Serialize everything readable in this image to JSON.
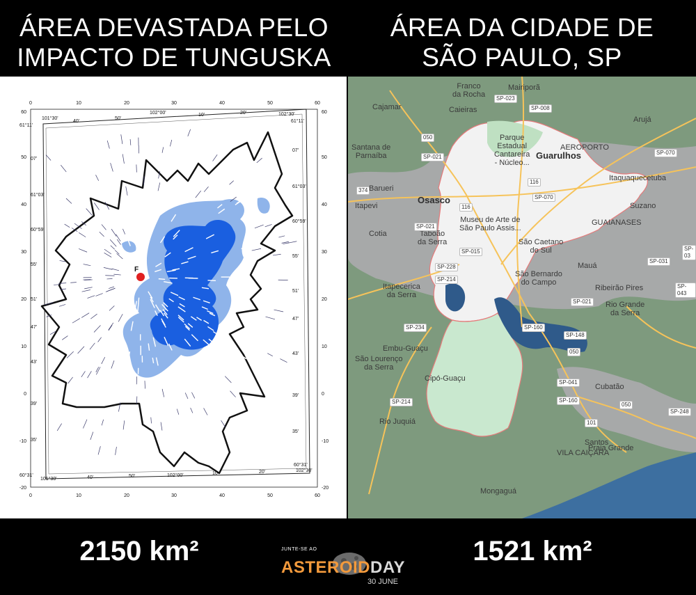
{
  "left_title": [
    "ÁREA DEVASTADA PELO",
    "IMPACTO DE TUNGUSKA"
  ],
  "right_title": [
    "ÁREA DA CIDADE DE",
    "SÃO PAULO, SP"
  ],
  "left_area": "2150 km²",
  "right_area": "1521 km²",
  "logo": {
    "small": "JUNTE-SE AO",
    "asteroid": "ASTEROID",
    "day": "DAY",
    "date": "30 JUNE"
  },
  "tunguska_map": {
    "axis_ticks": [
      "0",
      "10",
      "20",
      "30",
      "40",
      "50",
      "60"
    ],
    "y_ticks": [
      "60",
      "50",
      "40",
      "30",
      "20",
      "10",
      "0",
      "-10",
      "-20"
    ],
    "epicenter_label": "F",
    "corner_labels": [
      "61°11'",
      "101°30'",
      "102°00'",
      "102°30'",
      "61°11'",
      "60°31'",
      "101°30'",
      "102°00'",
      "102°30'",
      "60°31'"
    ],
    "lon_ticks": [
      "40'",
      "50'",
      "10'",
      "20'",
      "40'",
      "50'",
      "10'",
      "20'"
    ],
    "lat_ticks_left": [
      "07'",
      "61°03'",
      "60°59'",
      "55'",
      "51'",
      "47'",
      "43'",
      "39'",
      "35'"
    ],
    "lat_ticks_right": [
      "07'",
      "61°03'",
      "60°59'",
      "55'",
      "51'",
      "47'",
      "43'",
      "39'",
      "35'"
    ],
    "colors": {
      "light_blue": "#8fb4ea",
      "dark_blue": "#1a5fe0",
      "epicenter": "#e02020",
      "outline": "#111111"
    }
  },
  "sp_map": {
    "places": [
      {
        "name": "Franco\nda Rocha",
        "big": false
      },
      {
        "name": "Mairiporã",
        "big": false
      },
      {
        "name": "Cajamar",
        "big": false
      },
      {
        "name": "Caieiras",
        "big": false
      },
      {
        "name": "Arujá",
        "big": false
      },
      {
        "name": "Santana de\nParnaíba",
        "big": false
      },
      {
        "name": "Parque\nEstadual\nCantareira\n- Núcleo...",
        "big": false
      },
      {
        "name": "Guarulhos",
        "big": true
      },
      {
        "name": "AEROPORTO",
        "big": false
      },
      {
        "name": "Barueri",
        "big": false
      },
      {
        "name": "Itaquaquecetuba",
        "big": false
      },
      {
        "name": "Osasco",
        "big": true
      },
      {
        "name": "Itapevi",
        "big": false
      },
      {
        "name": "Suzano",
        "big": false
      },
      {
        "name": "Museu de Arte de\nSão Paulo Assis...",
        "big": false
      },
      {
        "name": "GUAIANASES",
        "big": false
      },
      {
        "name": "Cotia",
        "big": false
      },
      {
        "name": "Taboão\nda Serra",
        "big": false
      },
      {
        "name": "São Caetano\ndo Sul",
        "big": false
      },
      {
        "name": "Mauá",
        "big": false
      },
      {
        "name": "São Bernardo\ndo Campo",
        "big": false
      },
      {
        "name": "Ribeirão Pires",
        "big": false
      },
      {
        "name": "Itapecerica\nda Serra",
        "big": false
      },
      {
        "name": "Rio Grande\nda Serra",
        "big": false
      },
      {
        "name": "Embu-Guaçu",
        "big": false
      },
      {
        "name": "São Lourenço\nda Serra",
        "big": false
      },
      {
        "name": "Cipó-Guaçu",
        "big": false
      },
      {
        "name": "Cubatão",
        "big": false
      },
      {
        "name": "Rio Juquiá",
        "big": false
      },
      {
        "name": "Santos",
        "big": false
      },
      {
        "name": "Praia Grande",
        "big": false
      },
      {
        "name": "VILA CAIÇARA",
        "big": false
      },
      {
        "name": "Mongaguá",
        "big": false
      }
    ],
    "shields": [
      "SP-023",
      "SP-008",
      "050",
      "SP-021",
      "SP-070",
      "374",
      "116",
      "SP-070",
      "116",
      "SP-021",
      "SP-015",
      "SP-228",
      "SP-214",
      "SP-031",
      "SP-043",
      "SP-021",
      "SP-234",
      "SP-160",
      "SP-148",
      "050",
      "SP-041",
      "SP-160",
      "050",
      "SP-214",
      "101",
      "SP-248",
      "SP-03"
    ],
    "colors": {
      "land": "#7e9a7e",
      "city": "#f2f2f2",
      "city_south": "#c9e8cf",
      "water": "#2f5a8a",
      "road": "#f6c35a",
      "ocean": "#3d6fa0"
    }
  }
}
